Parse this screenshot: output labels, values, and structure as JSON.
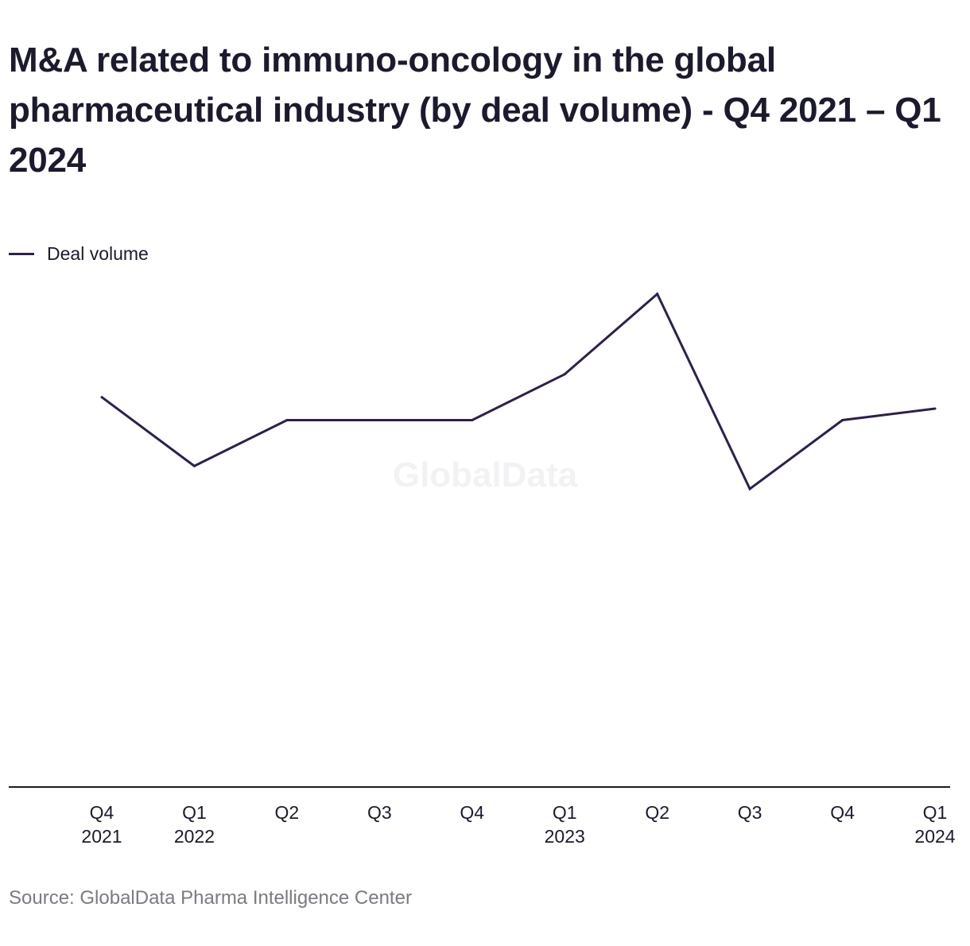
{
  "header": {
    "title": "M&A related to immuno-oncology in the global pharmaceutical industry (by deal volume) - Q4 2021 – Q1 2024"
  },
  "legend": {
    "series_label": "Deal volume",
    "series_color": "#2e1f4f"
  },
  "watermark": "GlobalData",
  "footer": {
    "source": "Source: GlobalData Pharma Intelligence Center"
  },
  "chart_data": {
    "type": "line",
    "title": "M&A related to immuno-oncology in the global pharmaceutical industry (by deal volume) - Q4 2021 – Q1 2024",
    "xlabel": "",
    "ylabel": "",
    "categories": [
      [
        "Q4",
        "2021"
      ],
      [
        "Q1",
        "2022"
      ],
      [
        "Q2",
        ""
      ],
      [
        "Q3",
        ""
      ],
      [
        "Q4",
        ""
      ],
      [
        "Q1",
        "2023"
      ],
      [
        "Q2",
        ""
      ],
      [
        "Q3",
        ""
      ],
      [
        "Q4",
        ""
      ],
      [
        "Q1",
        "2024"
      ]
    ],
    "series": [
      {
        "name": "Deal volume",
        "color": "#2e1f4f",
        "values": [
          17,
          14,
          16,
          16,
          16,
          18,
          21.5,
          13,
          16,
          16.5
        ]
      }
    ],
    "ylim": [
      0,
      26
    ],
    "grid": false,
    "legend_position": "top-left",
    "y_axis_labels_shown": false
  }
}
